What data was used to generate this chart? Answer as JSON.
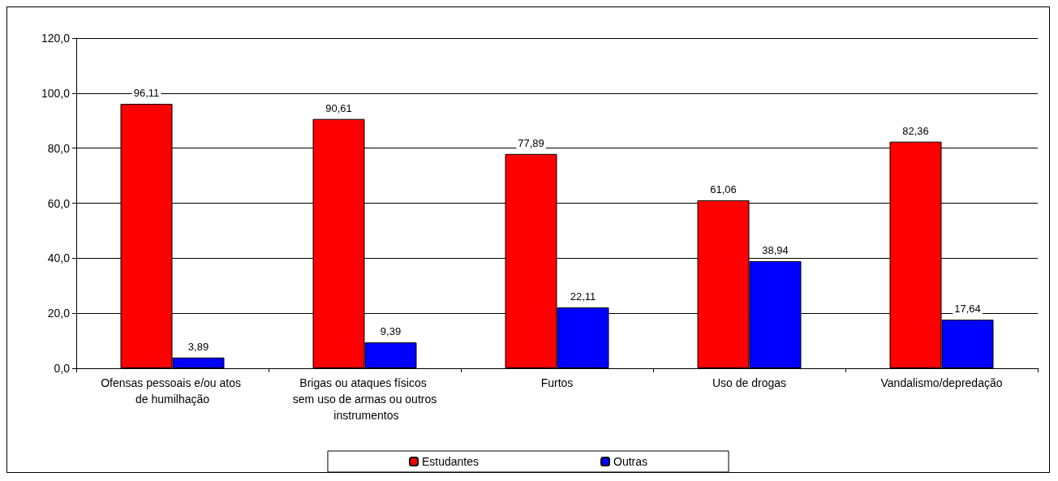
{
  "chart_data": {
    "type": "bar",
    "categories": [
      "Ofensas pessoais e/ou atos de humilhação",
      "Brigas ou ataques físicos sem uso de armas ou outros instrumentos",
      "Furtos",
      "Uso de drogas",
      "Vandalismo/depredação"
    ],
    "series": [
      {
        "name": "Estudantes",
        "color": "#ff0000",
        "values": [
          96.11,
          90.61,
          77.89,
          61.06,
          82.36
        ],
        "value_labels": [
          "96,11",
          "90,61",
          "77,89",
          "61,06",
          "82,36"
        ]
      },
      {
        "name": "Outras",
        "color": "#0000ff",
        "values": [
          3.89,
          9.39,
          22.11,
          38.94,
          17.64
        ],
        "value_labels": [
          "3,89",
          "9,39",
          "22,11",
          "38,94",
          "17,64"
        ]
      }
    ],
    "ylim": [
      0,
      120
    ],
    "yticks": [
      {
        "value": 0,
        "label": "0,0"
      },
      {
        "value": 20,
        "label": "20,0"
      },
      {
        "value": 40,
        "label": "40,0"
      },
      {
        "value": 60,
        "label": "60,0"
      },
      {
        "value": 80,
        "label": "80,0"
      },
      {
        "value": 100,
        "label": "100,0"
      },
      {
        "value": 120,
        "label": "120,0"
      }
    ],
    "grid": "y",
    "legend": "bottom"
  }
}
